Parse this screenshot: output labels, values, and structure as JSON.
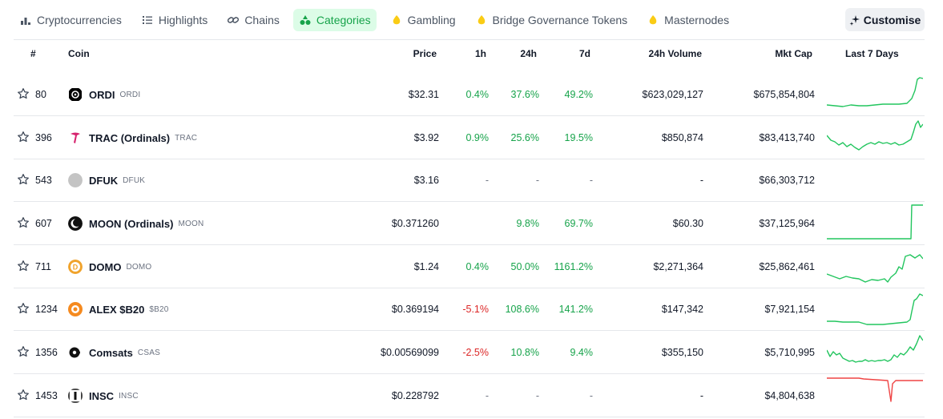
{
  "nav": {
    "items": [
      {
        "label": "Cryptocurrencies",
        "icon": "bar-chart-icon",
        "active": false
      },
      {
        "label": "Highlights",
        "icon": "list-icon",
        "active": false
      },
      {
        "label": "Chains",
        "icon": "link-icon",
        "active": false
      },
      {
        "label": "Categories",
        "icon": "shapes-icon",
        "active": true
      },
      {
        "label": "Gambling",
        "icon": "flame-icon",
        "active": false
      },
      {
        "label": "Bridge Governance Tokens",
        "icon": "flame-icon",
        "active": false
      },
      {
        "label": "Masternodes",
        "icon": "flame-icon",
        "active": false
      }
    ],
    "customise_label": "Customise"
  },
  "table": {
    "headers": {
      "rank": "#",
      "coin": "Coin",
      "price": "Price",
      "h1": "1h",
      "h24": "24h",
      "d7": "7d",
      "volume": "24h Volume",
      "mktcap": "Mkt Cap",
      "last7": "Last 7 Days"
    },
    "rows": [
      {
        "rank": "80",
        "name": "ORDI",
        "symbol": "ORDI",
        "logo": "ordi-logo",
        "price": "$32.31",
        "h1": "0.4%",
        "h24": "37.6%",
        "d7": "49.2%",
        "volume": "$623,029,127",
        "mktcap": "$675,854,804",
        "spark_color": "#22c55e"
      },
      {
        "rank": "396",
        "name": "TRAC (Ordinals)",
        "symbol": "TRAC",
        "logo": "trac-logo",
        "price": "$3.92",
        "h1": "0.9%",
        "h24": "25.6%",
        "d7": "19.5%",
        "volume": "$850,874",
        "mktcap": "$83,413,740",
        "spark_color": "#22c55e"
      },
      {
        "rank": "543",
        "name": "DFUK",
        "symbol": "DFUK",
        "logo": "dfuk-logo",
        "price": "$3.16",
        "h1": "-",
        "h24": "-",
        "d7": "-",
        "volume": "-",
        "mktcap": "$66,303,712",
        "spark_color": ""
      },
      {
        "rank": "607",
        "name": "MOON (Ordinals)",
        "symbol": "MOON",
        "logo": "moon-logo",
        "price": "$0.371260",
        "h1": "",
        "h24": "9.8%",
        "d7": "69.7%",
        "volume": "$60.30",
        "mktcap": "$37,125,964",
        "spark_color": "#22c55e"
      },
      {
        "rank": "711",
        "name": "DOMO",
        "symbol": "DOMO",
        "logo": "domo-logo",
        "price": "$1.24",
        "h1": "0.4%",
        "h24": "50.0%",
        "d7": "1161.2%",
        "volume": "$2,271,364",
        "mktcap": "$25,862,461",
        "spark_color": "#22c55e"
      },
      {
        "rank": "1234",
        "name": "ALEX $B20",
        "symbol": "$B20",
        "logo": "alex-logo",
        "price": "$0.369194",
        "h1": "-5.1%",
        "h24": "108.6%",
        "d7": "141.2%",
        "volume": "$147,342",
        "mktcap": "$7,921,154",
        "spark_color": "#22c55e"
      },
      {
        "rank": "1356",
        "name": "Comsats",
        "symbol": "CSAS",
        "logo": "comsats-logo",
        "price": "$0.00569099",
        "h1": "-2.5%",
        "h24": "10.8%",
        "d7": "9.4%",
        "volume": "$355,150",
        "mktcap": "$5,710,995",
        "spark_color": "#22c55e"
      },
      {
        "rank": "1453",
        "name": "INSC",
        "symbol": "INSC",
        "logo": "insc-logo",
        "price": "$0.228792",
        "h1": "-",
        "h24": "-",
        "d7": "-",
        "volume": "-",
        "mktcap": "$4,804,638",
        "spark_color": "#ef4444"
      }
    ]
  },
  "colors": {
    "positive": "#16a34a",
    "negative": "#dc2626",
    "active_tab_bg": "#dcfce7",
    "spark_up": "#22c55e",
    "spark_down": "#ef4444"
  }
}
